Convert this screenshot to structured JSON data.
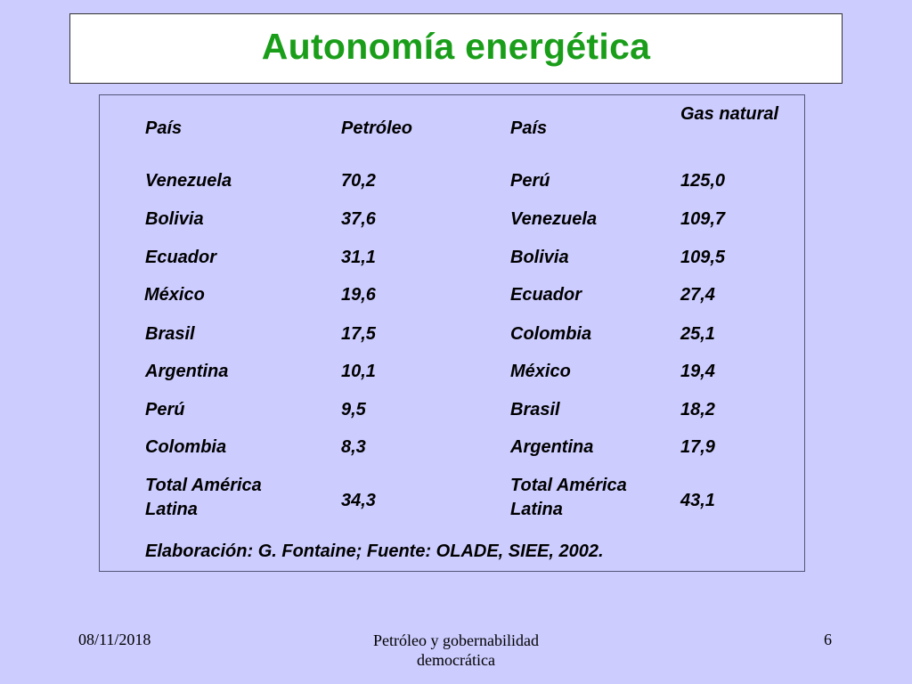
{
  "title": "Autonomía energética",
  "table": {
    "headers": [
      "País",
      "Petróleo",
      "País",
      "Gas natural"
    ],
    "rows": [
      [
        "Venezuela",
        "70,2",
        "Perú",
        "125,0"
      ],
      [
        "Bolivia",
        "37,6",
        "Venezuela",
        "109,7"
      ],
      [
        "Ecuador",
        "31,1",
        "Bolivia",
        "109,5"
      ],
      [
        "México",
        "19,6",
        "Ecuador",
        "27,4"
      ],
      [
        "Brasil",
        "17,5",
        "Colombia",
        "25,1"
      ],
      [
        "Argentina",
        "10,1",
        "México",
        "19,4"
      ],
      [
        "Perú",
        "9,5",
        "Brasil",
        "18,2"
      ],
      [
        "Colombia",
        "8,3",
        "Argentina",
        "17,9"
      ]
    ],
    "total_row": {
      "label_line1": "Total América",
      "label_line2": "Latina",
      "petroleo": "34,3",
      "label2_line1": "Total América",
      "label2_line2": "Latina",
      "gas": "43,1"
    },
    "source": "Elaboración: G. Fontaine; Fuente: OLADE, SIEE, 2002."
  },
  "footer": {
    "date": "08/11/2018",
    "center_line1": "Petróleo y gobernabilidad",
    "center_line2": "democrática",
    "page": "6"
  }
}
